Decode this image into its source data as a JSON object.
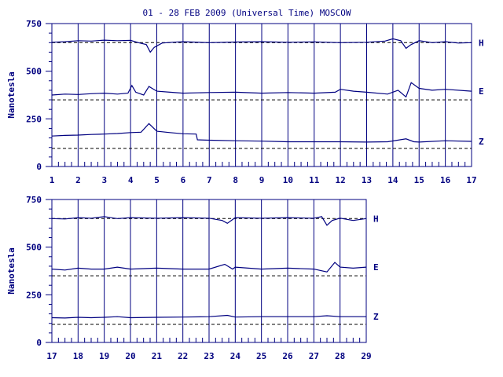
{
  "title": "01 - 28 FEB 2009 (Universal Time) MOSCOW",
  "colors": {
    "ink": "#000080",
    "dash": "#000000",
    "background": "#ffffff"
  },
  "chart_data": [
    {
      "type": "line",
      "title": "01 - 28 FEB 2009 (Universal Time) MOSCOW",
      "ylabel": "Nanotesla",
      "xlabel": "",
      "x_ticks": [
        "1",
        "2",
        "3",
        "4",
        "5",
        "6",
        "7",
        "8",
        "9",
        "10",
        "11",
        "12",
        "13",
        "14",
        "15",
        "16",
        "17"
      ],
      "y_ticks": [
        "0",
        "250",
        "500",
        "750"
      ],
      "xlim": [
        1,
        17
      ],
      "ylim": [
        0,
        750
      ],
      "grid": "vertical lines at each day",
      "series": [
        {
          "name": "H",
          "baseline": 650,
          "values": [
            [
              1,
              652
            ],
            [
              1.5,
              655
            ],
            [
              2,
              660
            ],
            [
              2.5,
              658
            ],
            [
              3,
              663
            ],
            [
              3.5,
              660
            ],
            [
              4,
              662
            ],
            [
              4.3,
              650
            ],
            [
              4.6,
              640
            ],
            [
              4.75,
              600
            ],
            [
              4.9,
              625
            ],
            [
              5.2,
              648
            ],
            [
              5.6,
              652
            ],
            [
              6,
              655
            ],
            [
              7,
              650
            ],
            [
              8,
              653
            ],
            [
              9,
              655
            ],
            [
              10,
              652
            ],
            [
              11,
              654
            ],
            [
              12,
              650
            ],
            [
              13,
              652
            ],
            [
              13.7,
              658
            ],
            [
              14,
              670
            ],
            [
              14.3,
              660
            ],
            [
              14.5,
              620
            ],
            [
              14.7,
              640
            ],
            [
              15,
              660
            ],
            [
              15.5,
              650
            ],
            [
              16,
              655
            ],
            [
              16.5,
              648
            ],
            [
              17,
              650
            ]
          ]
        },
        {
          "name": "E",
          "baseline": 350,
          "values": [
            [
              1,
              375
            ],
            [
              1.5,
              380
            ],
            [
              2,
              378
            ],
            [
              2.5,
              382
            ],
            [
              3,
              385
            ],
            [
              3.5,
              380
            ],
            [
              3.9,
              385
            ],
            [
              4.05,
              425
            ],
            [
              4.2,
              390
            ],
            [
              4.5,
              375
            ],
            [
              4.7,
              420
            ],
            [
              5,
              395
            ],
            [
              5.5,
              390
            ],
            [
              6,
              385
            ],
            [
              7,
              388
            ],
            [
              8,
              390
            ],
            [
              9,
              385
            ],
            [
              10,
              388
            ],
            [
              11,
              385
            ],
            [
              11.8,
              390
            ],
            [
              12,
              405
            ],
            [
              12.5,
              395
            ],
            [
              13,
              390
            ],
            [
              13.8,
              380
            ],
            [
              14.2,
              400
            ],
            [
              14.5,
              365
            ],
            [
              14.7,
              440
            ],
            [
              15,
              410
            ],
            [
              15.5,
              400
            ],
            [
              16,
              405
            ],
            [
              17,
              395
            ]
          ]
        },
        {
          "name": "Z",
          "baseline": 95,
          "values": [
            [
              1,
              160
            ],
            [
              1.5,
              163
            ],
            [
              2,
              165
            ],
            [
              2.5,
              168
            ],
            [
              3,
              170
            ],
            [
              3.5,
              173
            ],
            [
              4,
              178
            ],
            [
              4.4,
              180
            ],
            [
              4.7,
              225
            ],
            [
              5,
              185
            ],
            [
              5.5,
              178
            ],
            [
              6,
              172
            ],
            [
              6.5,
              170
            ],
            [
              6.55,
              140
            ],
            [
              7,
              138
            ],
            [
              8,
              135
            ],
            [
              9,
              133
            ],
            [
              10,
              130
            ],
            [
              11,
              130
            ],
            [
              12,
              130
            ],
            [
              13,
              128
            ],
            [
              13.8,
              130
            ],
            [
              14.5,
              145
            ],
            [
              14.8,
              130
            ],
            [
              15,
              128
            ],
            [
              16,
              135
            ],
            [
              17,
              132
            ]
          ]
        }
      ],
      "series_labels": [
        "H",
        "E",
        "Z"
      ]
    },
    {
      "type": "line",
      "title": "",
      "ylabel": "Nanotesla",
      "xlabel": "",
      "x_ticks": [
        "17",
        "18",
        "19",
        "20",
        "21",
        "22",
        "23",
        "24",
        "25",
        "26",
        "27",
        "28",
        "29"
      ],
      "y_ticks": [
        "0",
        "250",
        "500",
        "750"
      ],
      "xlim": [
        17,
        29
      ],
      "ylim": [
        0,
        750
      ],
      "grid": "vertical lines at each day",
      "series": [
        {
          "name": "H",
          "baseline": 650,
          "values": [
            [
              17,
              650
            ],
            [
              17.5,
              648
            ],
            [
              18,
              655
            ],
            [
              18.5,
              652
            ],
            [
              19,
              660
            ],
            [
              19.5,
              650
            ],
            [
              20,
              655
            ],
            [
              21,
              652
            ],
            [
              22,
              655
            ],
            [
              23,
              652
            ],
            [
              23.5,
              640
            ],
            [
              23.7,
              625
            ],
            [
              24,
              655
            ],
            [
              25,
              652
            ],
            [
              26,
              655
            ],
            [
              27,
              652
            ],
            [
              27.3,
              660
            ],
            [
              27.5,
              615
            ],
            [
              27.7,
              640
            ],
            [
              28,
              652
            ],
            [
              28.5,
              640
            ],
            [
              29,
              650
            ]
          ]
        },
        {
          "name": "E",
          "baseline": 350,
          "values": [
            [
              17,
              385
            ],
            [
              17.5,
              380
            ],
            [
              18,
              390
            ],
            [
              18.5,
              385
            ],
            [
              19,
              385
            ],
            [
              19.5,
              395
            ],
            [
              20,
              385
            ],
            [
              21,
              390
            ],
            [
              22,
              385
            ],
            [
              23,
              385
            ],
            [
              23.6,
              410
            ],
            [
              23.9,
              385
            ],
            [
              24,
              395
            ],
            [
              25,
              385
            ],
            [
              26,
              390
            ],
            [
              27,
              385
            ],
            [
              27.5,
              370
            ],
            [
              27.8,
              420
            ],
            [
              28,
              395
            ],
            [
              28.5,
              390
            ],
            [
              29,
              395
            ]
          ]
        },
        {
          "name": "Z",
          "baseline": 95,
          "values": [
            [
              17,
              130
            ],
            [
              17.5,
              128
            ],
            [
              18,
              132
            ],
            [
              18.5,
              130
            ],
            [
              19,
              132
            ],
            [
              19.5,
              135
            ],
            [
              20,
              130
            ],
            [
              21,
              132
            ],
            [
              22,
              133
            ],
            [
              23,
              135
            ],
            [
              23.7,
              142
            ],
            [
              24,
              133
            ],
            [
              25,
              135
            ],
            [
              26,
              135
            ],
            [
              27,
              135
            ],
            [
              27.5,
              140
            ],
            [
              28,
              135
            ],
            [
              29,
              135
            ]
          ]
        }
      ],
      "series_labels": [
        "H",
        "E",
        "Z"
      ]
    }
  ]
}
